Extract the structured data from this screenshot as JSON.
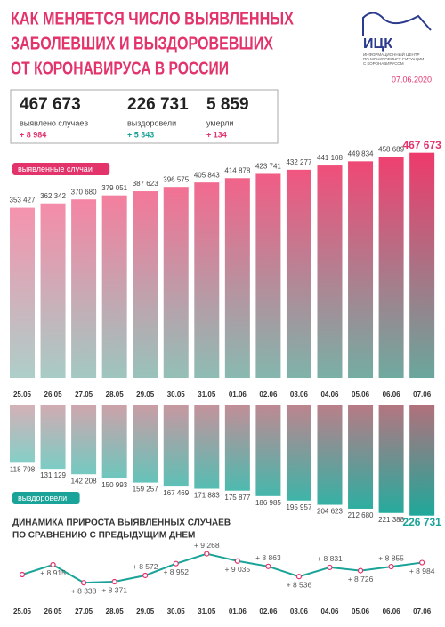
{
  "header": {
    "title": [
      "КАК МЕНЯЕТСЯ ЧИСЛО ВЫЯВЛЕННЫХ",
      "ЗАБОЛЕВШИХ И ВЫЗДОРОВЕВШИХ",
      "ОТ КОРОНАВИРУСА В РОССИИ"
    ],
    "logo": "ИЦК",
    "logo_text": [
      "ИНФОРМАЦИОННЫЙ ЦЕНТР",
      "ПО МОНИТОРИНГУ СИТУАЦИИ",
      "С КОРОНАВИРУСОМ"
    ],
    "date": "07.06.2020",
    "stats": [
      {
        "value": "467 673",
        "label": "выявлено случаев",
        "delta": "+ 8 984"
      },
      {
        "value": "226 731",
        "label": "выздоровели",
        "delta": "+ 5 343"
      },
      {
        "value": "5 859",
        "label": "умерли",
        "delta": "+ 134"
      }
    ]
  },
  "chart_data": [
    {
      "type": "bar",
      "legend": "выявленные случаи",
      "color": "#ee3a6b",
      "color_bottom": "#6aa79c",
      "categories": [
        "25.05",
        "26.05",
        "27.05",
        "28.05",
        "29.05",
        "30.05",
        "31.05",
        "01.06",
        "02.06",
        "03.06",
        "04.06",
        "05.06",
        "06.06",
        "07.06"
      ],
      "values": [
        353427,
        362342,
        370680,
        379051,
        387623,
        396575,
        405843,
        414878,
        423741,
        432277,
        441108,
        449834,
        458689,
        467673
      ],
      "value_labels": [
        "353 427",
        "362 342",
        "370 680",
        "379 051",
        "387 623",
        "396 575",
        "405 843",
        "414 878",
        "423 741",
        "432 277",
        "441 108",
        "449 834",
        "458 689",
        "467 673"
      ],
      "ylim": [
        0,
        480000
      ]
    },
    {
      "type": "bar",
      "direction": "down",
      "legend": "выздоровели",
      "color": "#b2707c",
      "color_bottom": "#1fa89a",
      "values": [
        118798,
        131129,
        142208,
        150993,
        159257,
        167469,
        171883,
        175877,
        186985,
        195957,
        204623,
        212680,
        221388,
        226731
      ],
      "value_labels": [
        "118 798",
        "131 129",
        "142 208",
        "150 993",
        "159 257",
        "167 469",
        "171 883",
        "175 877",
        "186 985",
        "195 957",
        "204 623",
        "212 680",
        "221 388",
        "226 731"
      ],
      "ylim": [
        0,
        240000
      ]
    },
    {
      "type": "line",
      "title": [
        "ДИНАМИКА ПРИРОСТА ВЫЯВЛЕННЫХ СЛУЧАЕВ",
        "ПО СРАВНЕНИЮ С ПРЕДЫДУЩИМ ДНЕМ"
      ],
      "color": "#1aa398",
      "marker_color": "#e2336b",
      "categories": [
        "25.05",
        "26.05",
        "27.05",
        "28.05",
        "29.05",
        "30.05",
        "31.05",
        "01.06",
        "02.06",
        "03.06",
        "04.06",
        "05.06",
        "06.06",
        "07.06"
      ],
      "values": [
        8600,
        8915,
        8338,
        8371,
        8572,
        8952,
        9268,
        9035,
        8863,
        8536,
        8831,
        8726,
        8855,
        8984
      ],
      "value_labels": [
        null,
        "+ 8 915",
        "+ 8 338",
        "+ 8 371",
        "+ 8 572",
        "+ 8 952",
        "+ 9 268",
        "+ 9 035",
        "+ 8 863",
        "+ 8 536",
        "+ 8 831",
        "+ 8 726",
        "+ 8 855",
        "+ 8 984"
      ],
      "ylim": [
        8200,
        9400
      ]
    }
  ]
}
